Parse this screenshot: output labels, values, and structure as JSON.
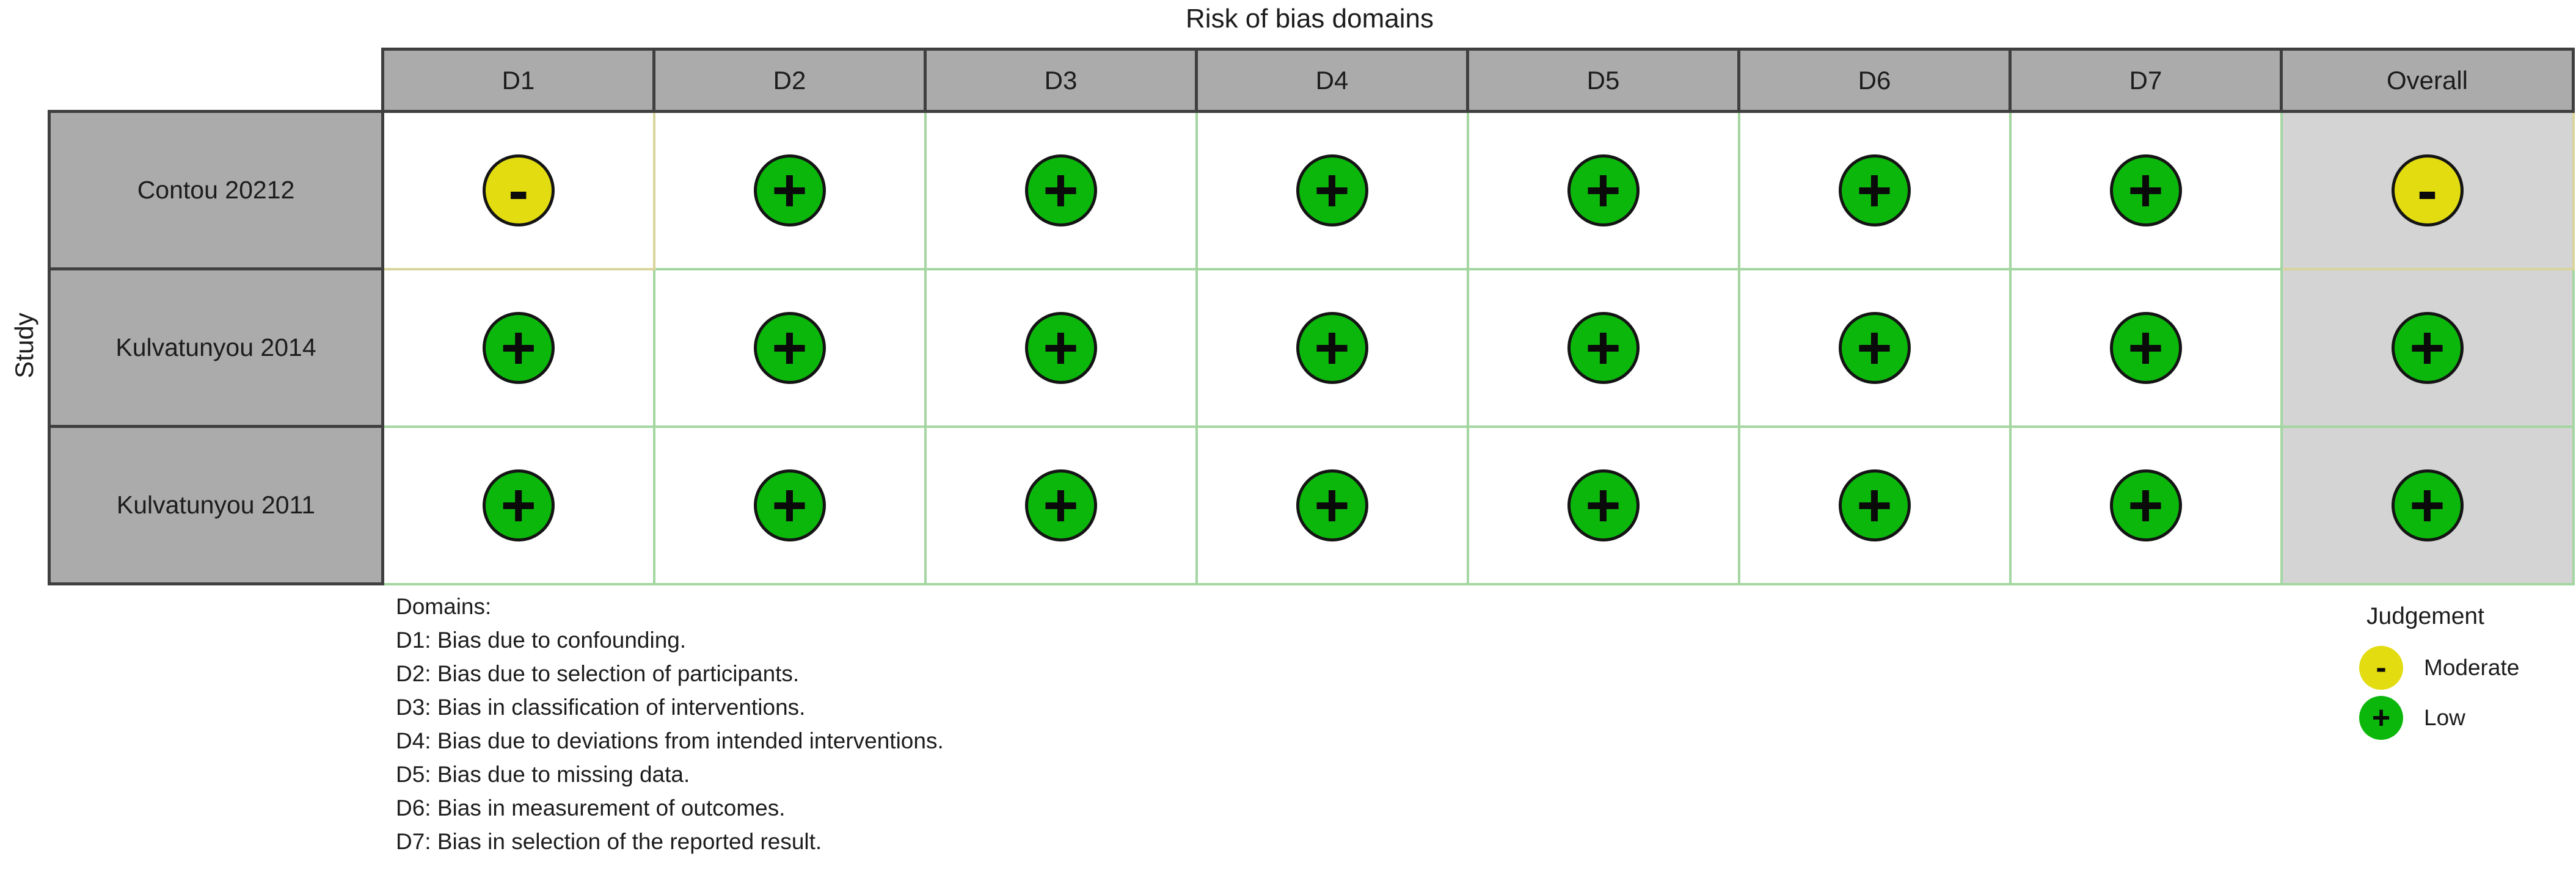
{
  "chart_data": {
    "type": "table",
    "title": "Risk of bias domains",
    "y_axis_label": "Study",
    "columns": [
      "D1",
      "D2",
      "D3",
      "D4",
      "D5",
      "D6",
      "D7",
      "Overall"
    ],
    "rows": [
      {
        "study": "Contou 20212",
        "judgements": [
          "moderate",
          "low",
          "low",
          "low",
          "low",
          "low",
          "low",
          "moderate"
        ]
      },
      {
        "study": "Kulvatunyou 2014",
        "judgements": [
          "low",
          "low",
          "low",
          "low",
          "low",
          "low",
          "low",
          "low"
        ]
      },
      {
        "study": "Kulvatunyou 2011",
        "judgements": [
          "low",
          "low",
          "low",
          "low",
          "low",
          "low",
          "low",
          "low"
        ]
      }
    ],
    "legend_position": "bottom-right",
    "grid": "on"
  },
  "symbols": {
    "low": "+",
    "moderate": "-"
  },
  "colors": {
    "low": "#0CB70C",
    "moderate": "#E2DC10",
    "low_grid": "#A3D6A0",
    "moderate_grid": "#D9D49B",
    "header_bg": "#ABABAB",
    "overall_bg": "#D4D4D4",
    "table_border": "#3F3F3F"
  },
  "footnote": {
    "heading": "Domains:",
    "items": [
      "D1: Bias due to confounding.",
      "D2: Bias due to selection of participants.",
      "D3: Bias in classification of interventions.",
      "D4: Bias due to deviations from intended interventions.",
      "D5: Bias due to missing data.",
      "D6: Bias in measurement of outcomes.",
      "D7: Bias in selection of the reported result."
    ]
  },
  "legend": {
    "title": "Judgement",
    "entries": [
      {
        "label": "Moderate",
        "judgement": "moderate"
      },
      {
        "label": "Low",
        "judgement": "low"
      }
    ]
  }
}
